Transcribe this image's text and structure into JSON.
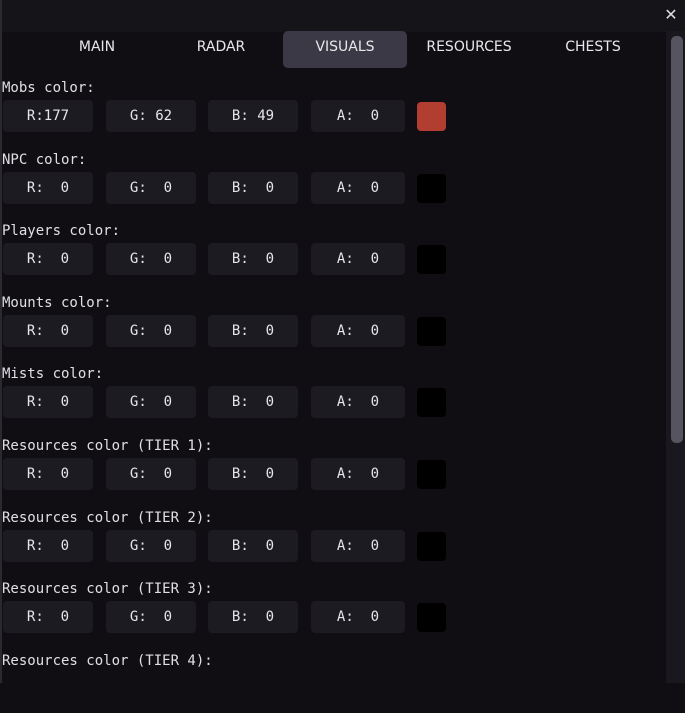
{
  "window": {
    "close_icon": "close-icon",
    "close_glyph": "✕"
  },
  "tabs": [
    {
      "label": "MAIN"
    },
    {
      "label": "RADAR"
    },
    {
      "label": "VISUALS",
      "active": true
    },
    {
      "label": "RESOURCES"
    },
    {
      "label": "CHESTS"
    }
  ],
  "sections": [
    {
      "label": "Mobs color:",
      "r": "R:177",
      "g": "G: 62",
      "b": "B: 49",
      "a": "A:  0",
      "swatch": "#b13e31"
    },
    {
      "label": "NPC color:",
      "r": "R:  0",
      "g": "G:  0",
      "b": "B:  0",
      "a": "A:  0",
      "swatch": "#000000"
    },
    {
      "label": "Players color:",
      "r": "R:  0",
      "g": "G:  0",
      "b": "B:  0",
      "a": "A:  0",
      "swatch": "#000000"
    },
    {
      "label": "Mounts color:",
      "r": "R:  0",
      "g": "G:  0",
      "b": "B:  0",
      "a": "A:  0",
      "swatch": "#000000"
    },
    {
      "label": "Mists color:",
      "r": "R:  0",
      "g": "G:  0",
      "b": "B:  0",
      "a": "A:  0",
      "swatch": "#000000"
    },
    {
      "label": "Resources color (TIER 1):",
      "r": "R:  0",
      "g": "G:  0",
      "b": "B:  0",
      "a": "A:  0",
      "swatch": "#000000"
    },
    {
      "label": "Resources color (TIER 2):",
      "r": "R:  0",
      "g": "G:  0",
      "b": "B:  0",
      "a": "A:  0",
      "swatch": "#000000"
    },
    {
      "label": "Resources color (TIER 3):",
      "r": "R:  0",
      "g": "G:  0",
      "b": "B:  0",
      "a": "A:  0",
      "swatch": "#000000"
    },
    {
      "label": "Resources color (TIER 4):"
    }
  ]
}
